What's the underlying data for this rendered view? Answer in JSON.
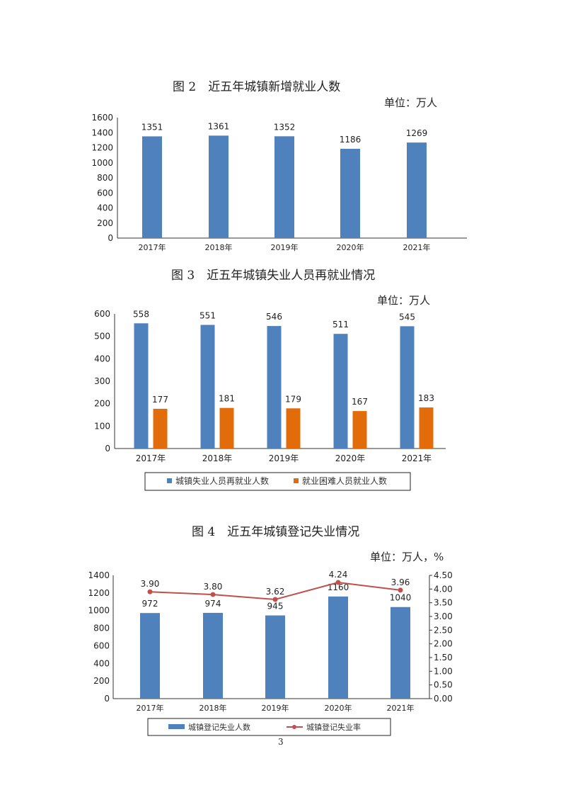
{
  "page": {
    "number": "3"
  },
  "chart_data": [
    {
      "type": "bar",
      "title": "图 2　近五年城镇新增就业人数",
      "unit": "单位：万人",
      "categories": [
        "2017年",
        "2018年",
        "2019年",
        "2020年",
        "2021年"
      ],
      "series": [
        {
          "name": "城镇新增就业人数",
          "color": "#4f81bd",
          "values": [
            1351,
            1361,
            1352,
            1186,
            1269
          ]
        }
      ],
      "xlabel": "",
      "ylabel": "",
      "ylim": [
        0,
        1600
      ],
      "yticks": [
        0,
        200,
        400,
        600,
        800,
        1000,
        1200,
        1400,
        1600
      ],
      "grid": false,
      "legend": "none"
    },
    {
      "type": "bar",
      "title": "图 3　近五年城镇失业人员再就业情况",
      "unit": "单位：万人",
      "categories": [
        "2017年",
        "2018年",
        "2019年",
        "2020年",
        "2021年"
      ],
      "series": [
        {
          "name": "城镇失业人员再就业人数",
          "color": "#4f81bd",
          "values": [
            558,
            551,
            546,
            511,
            545
          ]
        },
        {
          "name": "就业困难人员就业人数",
          "color": "#e36c0a",
          "values": [
            177,
            181,
            179,
            167,
            183
          ]
        }
      ],
      "ylim": [
        0,
        600
      ],
      "yticks": [
        0,
        100,
        200,
        300,
        400,
        500,
        600
      ],
      "grid": false,
      "legend": "bottom"
    },
    {
      "type": "bar+line",
      "title": "图 4　近五年城镇登记失业情况",
      "unit": "单位：万人，%",
      "categories": [
        "2017年",
        "2018年",
        "2019年",
        "2020年",
        "2021年"
      ],
      "series": [
        {
          "name": "城镇登记失业人数",
          "type": "bar",
          "axis": "left",
          "color": "#4f81bd",
          "values": [
            972,
            974,
            945,
            1160,
            1040
          ]
        },
        {
          "name": "城镇登记失业率",
          "type": "line",
          "axis": "right",
          "color": "#c0504d",
          "values": [
            3.9,
            3.8,
            3.62,
            4.24,
            3.96
          ],
          "labels": [
            "3.90",
            "3.80",
            "3.62",
            "4.24",
            "3.96"
          ]
        }
      ],
      "ylim": [
        0,
        1400
      ],
      "yticks": [
        0,
        200,
        400,
        600,
        800,
        1000,
        1200,
        1400
      ],
      "y2lim": [
        0,
        4.5
      ],
      "y2ticks": [
        "0.00",
        "0.50",
        "1.00",
        "1.50",
        "2.00",
        "2.50",
        "3.00",
        "3.50",
        "4.00",
        "4.50"
      ],
      "grid": false,
      "legend": "bottom"
    }
  ]
}
